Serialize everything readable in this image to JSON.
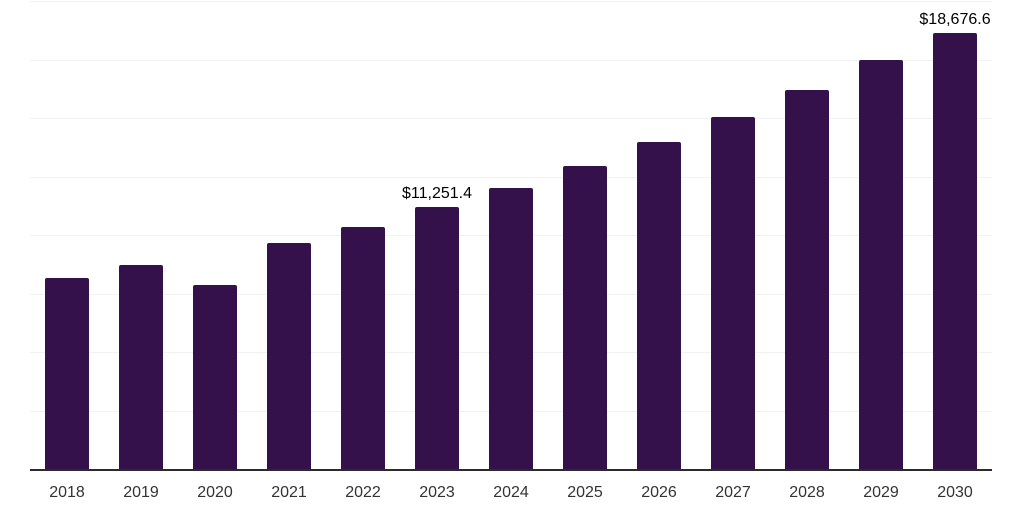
{
  "chart_data": {
    "type": "bar",
    "title": "",
    "xlabel": "",
    "ylabel": "",
    "categories": [
      "2018",
      "2019",
      "2020",
      "2021",
      "2022",
      "2023",
      "2024",
      "2025",
      "2026",
      "2027",
      "2028",
      "2029",
      "2030"
    ],
    "values": [
      8190,
      8760,
      7905,
      9715,
      10370,
      11251.4,
      12060,
      13000,
      14000,
      15080,
      16220,
      17520,
      18676.6
    ],
    "value_labels": {
      "2023": "$11,251.4",
      "2030": "$18,676.6"
    },
    "ylim": [
      0,
      20000
    ],
    "grid_step": 2500,
    "grid": "horizontal-only",
    "legend": "none",
    "colors": {
      "bar": "#34114B",
      "grid_line": "#f2f2f2",
      "axis_line": "#2b2b2b",
      "tick_label": "#333333",
      "data_label": "#000000",
      "background": "#ffffff"
    }
  }
}
